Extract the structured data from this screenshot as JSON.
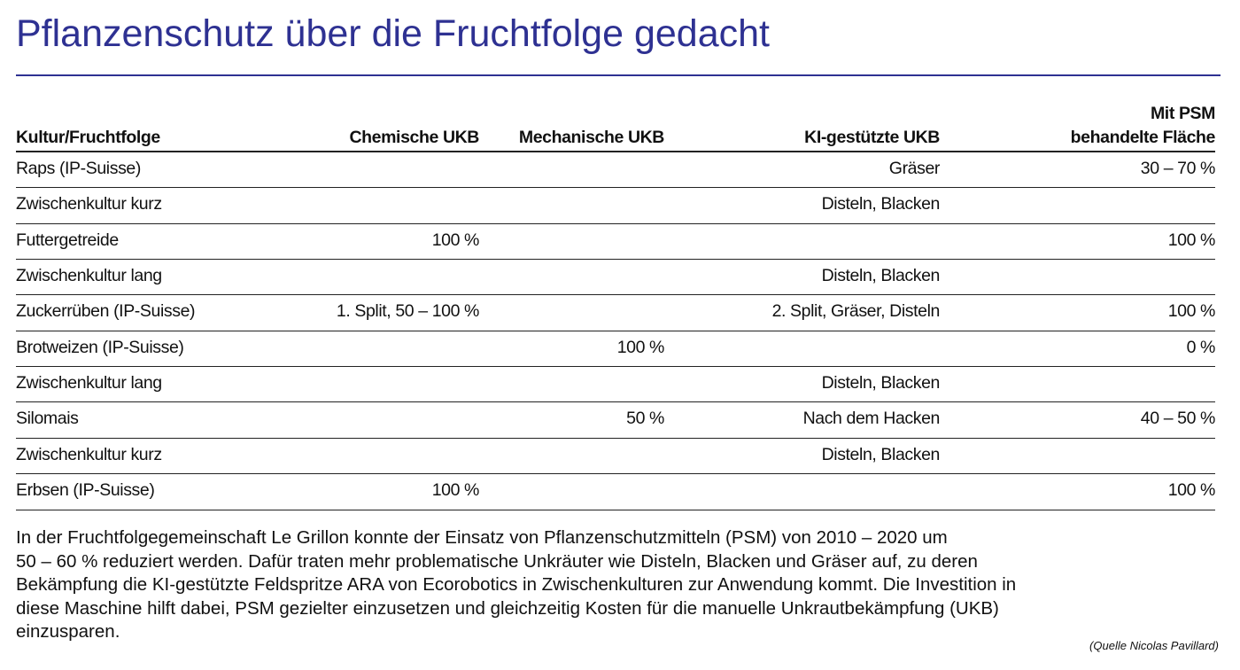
{
  "title": "Pflanzenschutz über die Fruchtfolge gedacht",
  "table": {
    "headers": [
      "Kultur/Fruchtfolge",
      "Chemische UKB",
      "Mechanische UKB",
      "KI-gestützte UKB",
      [
        "Mit PSM",
        "behandelte Fläche"
      ]
    ],
    "rows": [
      [
        "Raps (IP-Suisse)",
        null,
        null,
        "Gräser",
        "30 – 70 %"
      ],
      [
        "Zwischenkultur kurz",
        null,
        null,
        "Disteln, Blacken",
        null
      ],
      [
        "Futtergetreide",
        "100 %",
        null,
        null,
        "100 %"
      ],
      [
        "Zwischenkultur lang",
        null,
        null,
        "Disteln, Blacken",
        null
      ],
      [
        "Zuckerrüben (IP-Suisse)",
        "1. Split, 50 – 100 %",
        null,
        "2. Split, Gräser, Disteln",
        "100 %"
      ],
      [
        "Brotweizen (IP-Suisse)",
        null,
        "100 %",
        null,
        "0 %"
      ],
      [
        "Zwischenkultur lang",
        null,
        null,
        "Disteln, Blacken",
        null
      ],
      [
        "Silomais",
        null,
        "50 %",
        "Nach dem Hacken",
        "40 – 50 %"
      ],
      [
        "Zwischenkultur kurz",
        null,
        null,
        "Disteln, Blacken",
        null
      ],
      [
        "Erbsen (IP-Suisse)",
        "100 %",
        null,
        null,
        "100 %"
      ]
    ]
  },
  "text": {
    "lines": [
      "In der Fruchtfolgegemeinschaft Le Grillon konnte der Einsatz von Pflanzenschutzmitteln (PSM) von 2010 – 2020 um",
      "50 – 60 % reduziert werden. Dafür traten mehr problematische Unkräuter wie Disteln, Blacken und Gräser auf, zu deren",
      "Bekämpfung die KI-gestützte Feldspritze ARA von Ecorobotics in Zwischenkulturen zur Anwendung kommt. Die Investition in",
      "diese Maschine hilft dabei, PSM gezielter einzusetzen und gleichzeitig Kosten für die manuelle Unkrautbekämpfung (UKB)",
      "einzusparen."
    ],
    "source": "(Quelle Nicolas Pavillard)"
  }
}
